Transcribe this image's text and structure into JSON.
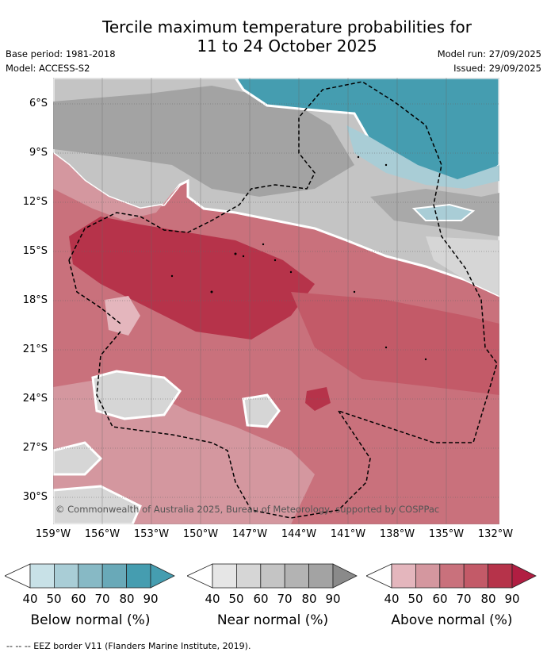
{
  "title_line1": "Tercile maximum temperature probabilities for",
  "title_line2": "11 to 24 October 2025",
  "base_period": "Base period: 1981-2018",
  "model": "Model: ACCESS-S2",
  "model_run": "Model run: 27/09/2025",
  "issued": "Issued: 29/09/2025",
  "lat_labels": [
    "6°S",
    "9°S",
    "12°S",
    "15°S",
    "18°S",
    "21°S",
    "24°S",
    "27°S",
    "30°S"
  ],
  "lon_labels": [
    "159°W",
    "156°W",
    "153°W",
    "150°W",
    "147°W",
    "144°W",
    "141°W",
    "138°W",
    "135°W",
    "132°W"
  ],
  "copyright": "© Commonwealth of Australia 2025, Bureau of Meteorology, supported by COSPPac",
  "legend": [
    {
      "label": "Below normal (%)",
      "ticks": [
        "40",
        "50",
        "60",
        "70",
        "80",
        "90"
      ],
      "colors": [
        "#c8e1e7",
        "#a9cdd6",
        "#87b9c5",
        "#69a9b8",
        "#459db0"
      ]
    },
    {
      "label": "Near normal (%)",
      "ticks": [
        "40",
        "50",
        "60",
        "70",
        "80",
        "90"
      ],
      "colors": [
        "#e6e6e6",
        "#d6d6d6",
        "#c4c4c4",
        "#b3b3b3",
        "#a3a3a3"
      ]
    },
    {
      "label": "Above normal (%)",
      "ticks": [
        "40",
        "50",
        "60",
        "70",
        "80",
        "90"
      ],
      "colors": [
        "#e4b6bd",
        "#d4979f",
        "#c9717c",
        "#c35a68",
        "#b6334a"
      ]
    }
  ],
  "footnote": "--  --  -- EEZ border V11 (Flanders Marine Institute, 2019)."
}
